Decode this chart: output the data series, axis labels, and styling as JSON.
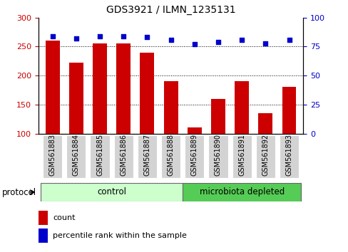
{
  "title": "GDS3921 / ILMN_1235131",
  "categories": [
    "GSM561883",
    "GSM561884",
    "GSM561885",
    "GSM561886",
    "GSM561887",
    "GSM561888",
    "GSM561889",
    "GSM561890",
    "GSM561891",
    "GSM561892",
    "GSM561893"
  ],
  "bar_values": [
    261,
    222,
    255,
    255,
    240,
    191,
    110,
    160,
    191,
    135,
    181
  ],
  "scatter_values": [
    84,
    82,
    84,
    84,
    83,
    81,
    77,
    79,
    81,
    78,
    81
  ],
  "bar_color": "#cc0000",
  "scatter_color": "#0000cc",
  "ylim_left": [
    100,
    300
  ],
  "ylim_right": [
    0,
    100
  ],
  "yticks_left": [
    100,
    150,
    200,
    250,
    300
  ],
  "yticks_right": [
    0,
    25,
    50,
    75,
    100
  ],
  "grid_values": [
    150,
    200,
    250
  ],
  "control_indices": [
    0,
    1,
    2,
    3,
    4,
    5
  ],
  "microbiota_indices": [
    6,
    7,
    8,
    9,
    10
  ],
  "control_label": "control",
  "microbiota_label": "microbiota depleted",
  "protocol_label": "protocol",
  "legend_bar_label": "count",
  "legend_scatter_label": "percentile rank within the sample",
  "control_color": "#ccffcc",
  "microbiota_color": "#55cc55",
  "ticklabel_bg": "#d3d3d3",
  "bar_width": 0.6
}
